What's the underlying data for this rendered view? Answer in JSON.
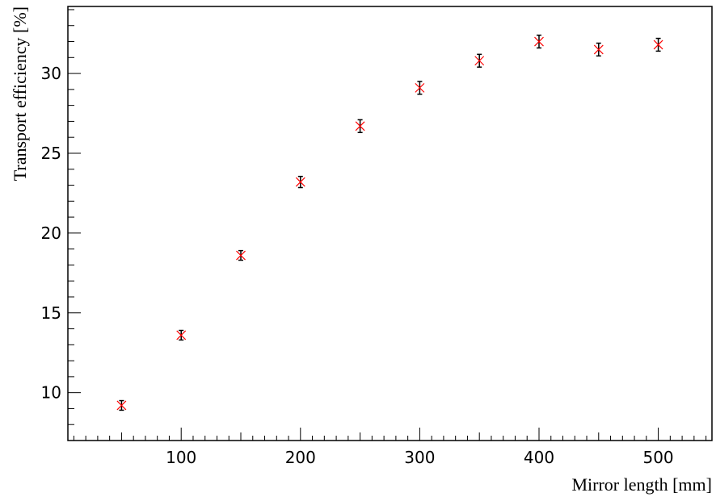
{
  "chart_data": {
    "type": "scatter",
    "title": "",
    "xlabel": "Mirror length [mm]",
    "ylabel": "Transport efficiency [%]",
    "xlim": [
      5,
      545
    ],
    "ylim": [
      7,
      34.2
    ],
    "x_ticks": [
      100,
      200,
      300,
      400,
      500
    ],
    "y_ticks": [
      10,
      15,
      20,
      25,
      30
    ],
    "x_tick_labels": [
      "100",
      "200",
      "300",
      "400",
      "500"
    ],
    "y_tick_labels": [
      "10",
      "15",
      "20",
      "25",
      "30"
    ],
    "grid": false,
    "legend": "none",
    "marker": "x",
    "marker_color": "#ff0000",
    "errorbar_color": "#000000",
    "series": [
      {
        "x": [
          50,
          100,
          150,
          200,
          250,
          300,
          350,
          400,
          450,
          500
        ],
        "y": [
          9.2,
          13.6,
          18.6,
          23.2,
          26.7,
          29.1,
          30.8,
          32.0,
          31.5,
          31.8
        ],
        "yerr": [
          0.3,
          0.3,
          0.3,
          0.35,
          0.4,
          0.4,
          0.4,
          0.4,
          0.4,
          0.4
        ]
      }
    ]
  }
}
